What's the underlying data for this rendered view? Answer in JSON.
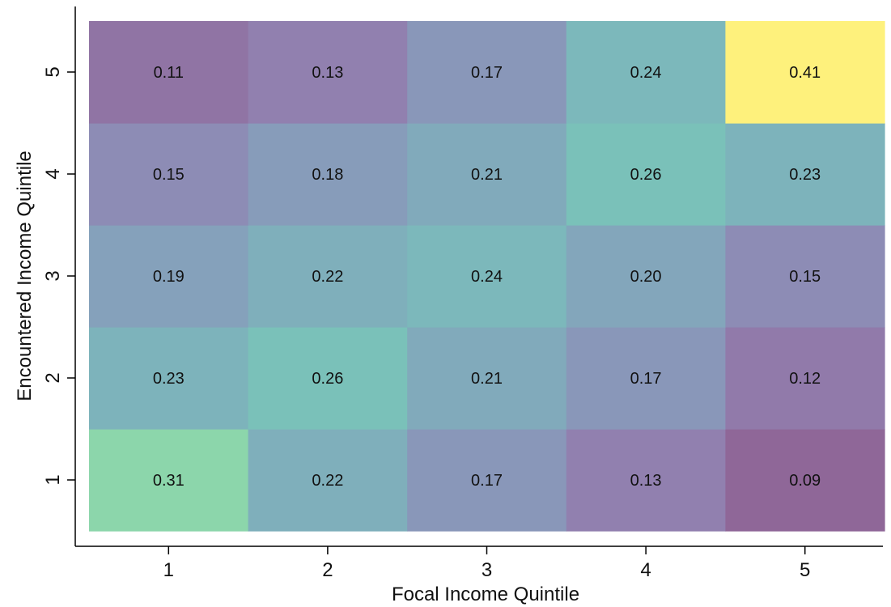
{
  "chart_data": {
    "type": "heatmap",
    "title": "",
    "xlabel": "Focal Income Quintile",
    "ylabel": "Encountered Income Quintile",
    "x_categories": [
      "1",
      "2",
      "3",
      "4",
      "5"
    ],
    "y_categories": [
      "1",
      "2",
      "3",
      "4",
      "5"
    ],
    "values": [
      [
        0.31,
        0.22,
        0.17,
        0.13,
        0.09
      ],
      [
        0.23,
        0.26,
        0.21,
        0.17,
        0.12
      ],
      [
        0.19,
        0.22,
        0.24,
        0.2,
        0.15
      ],
      [
        0.15,
        0.18,
        0.21,
        0.26,
        0.23
      ],
      [
        0.11,
        0.13,
        0.17,
        0.24,
        0.41
      ]
    ],
    "value_labels": [
      [
        "0.31",
        "0.22",
        "0.17",
        "0.13",
        "0.09"
      ],
      [
        "0.23",
        "0.26",
        "0.21",
        "0.17",
        "0.12"
      ],
      [
        "0.19",
        "0.22",
        "0.24",
        "0.20",
        "0.15"
      ],
      [
        "0.15",
        "0.18",
        "0.21",
        "0.26",
        "0.23"
      ],
      [
        "0.11",
        "0.13",
        "0.17",
        "0.24",
        "0.41"
      ]
    ],
    "colormap": "viridis",
    "color_range": [
      0.09,
      0.41
    ],
    "cell_opacity": 0.6,
    "grid": false,
    "legend": "none"
  }
}
